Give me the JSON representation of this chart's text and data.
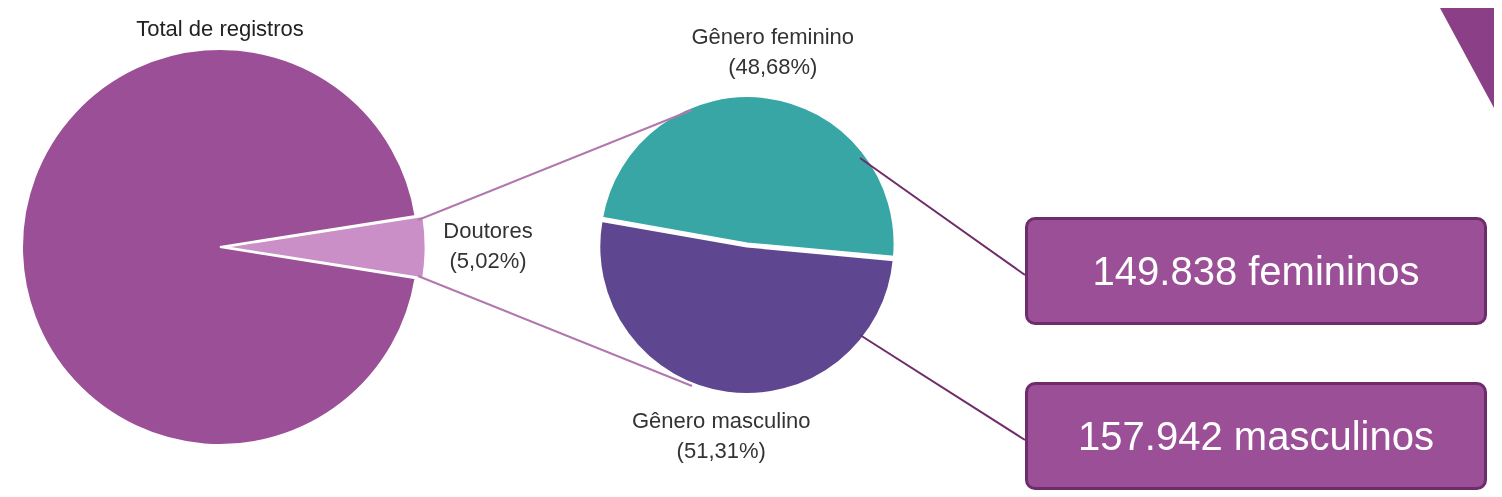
{
  "chart_data": [
    {
      "type": "pie",
      "title": "Total de registros",
      "categories": [
        "Doutores",
        null
      ],
      "values": [
        5.02,
        94.98
      ],
      "colors": [
        "#c98fc6",
        "#9b4f96"
      ],
      "value_labels": [
        "(5,02%)",
        null
      ]
    },
    {
      "type": "pie",
      "categories": [
        "Gênero feminino",
        "Gênero masculino"
      ],
      "values": [
        48.68,
        51.31
      ],
      "colors": [
        "#38a6a5",
        "#5e4790"
      ],
      "value_labels": [
        "(48,68%)",
        "(51,31%)"
      ],
      "annotations": [
        "149.838 femininos",
        "157.942 masculinos"
      ]
    }
  ]
}
